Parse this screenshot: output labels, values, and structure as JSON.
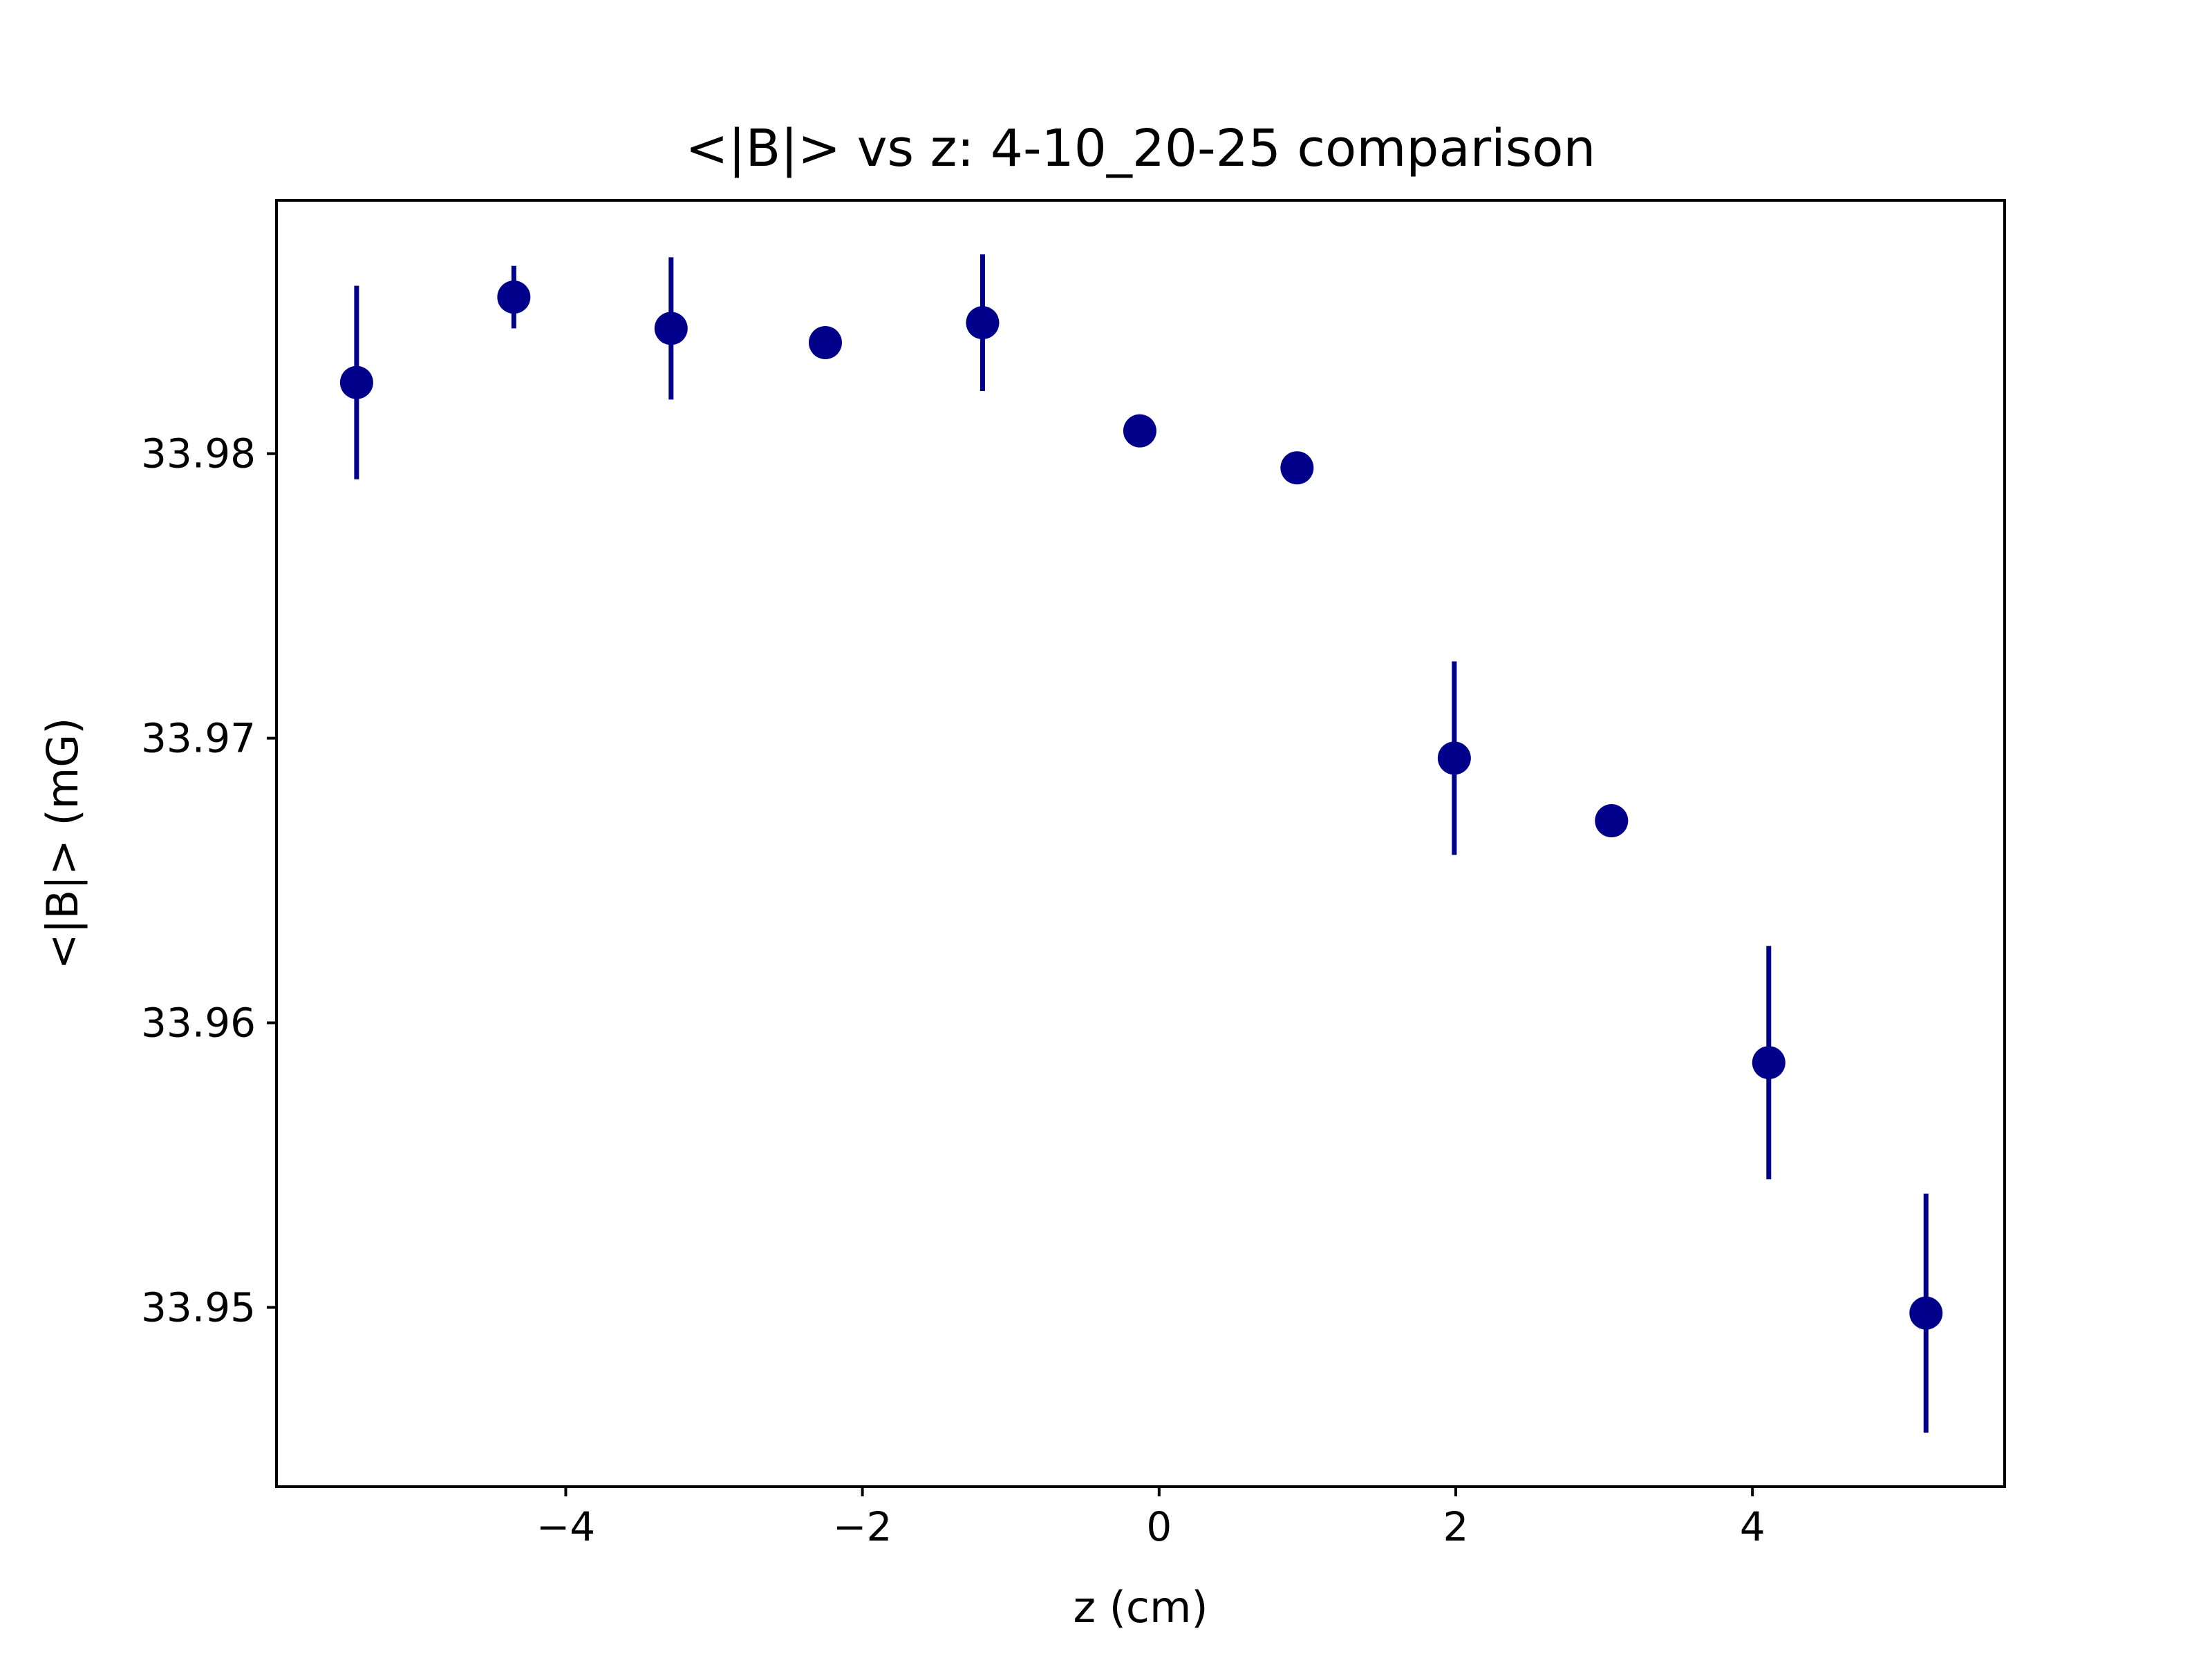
{
  "chart_data": {
    "type": "scatter",
    "title": "<|B|> vs z: 4-10_20-25 comparison",
    "xlabel": "z (cm)",
    "ylabel": "<|B|> (mG)",
    "xlim": [
      -5.95,
      5.7
    ],
    "ylim": [
      33.9437,
      33.9889
    ],
    "xticks": [
      {
        "value": -4,
        "label": "−4"
      },
      {
        "value": -2,
        "label": "−2"
      },
      {
        "value": 0,
        "label": "0"
      },
      {
        "value": 2,
        "label": "2"
      },
      {
        "value": 4,
        "label": "4"
      }
    ],
    "yticks": [
      {
        "value": 33.95,
        "label": "33.95"
      },
      {
        "value": 33.96,
        "label": "33.96"
      },
      {
        "value": 33.97,
        "label": "33.97"
      },
      {
        "value": 33.98,
        "label": "33.98"
      }
    ],
    "grid": false,
    "color": "#00008b",
    "series": [
      {
        "points": [
          {
            "x": -5.41,
            "y": 33.9825,
            "err": 0.0034
          },
          {
            "x": -4.35,
            "y": 33.9855,
            "err": 0.0011
          },
          {
            "x": -3.29,
            "y": 33.9844,
            "err": 0.0025
          },
          {
            "x": -2.25,
            "y": 33.9839,
            "err": 0.0003
          },
          {
            "x": -1.19,
            "y": 33.9846,
            "err": 0.0024
          },
          {
            "x": -0.13,
            "y": 33.9808,
            "err": 0.0
          },
          {
            "x": 0.93,
            "y": 33.9795,
            "err": 0.0
          },
          {
            "x": 1.99,
            "y": 33.9693,
            "err": 0.0034
          },
          {
            "x": 3.05,
            "y": 33.9671,
            "err": 0.0
          },
          {
            "x": 4.11,
            "y": 33.9586,
            "err": 0.0041
          },
          {
            "x": 5.17,
            "y": 33.9498,
            "err": 0.0042
          }
        ]
      }
    ]
  }
}
